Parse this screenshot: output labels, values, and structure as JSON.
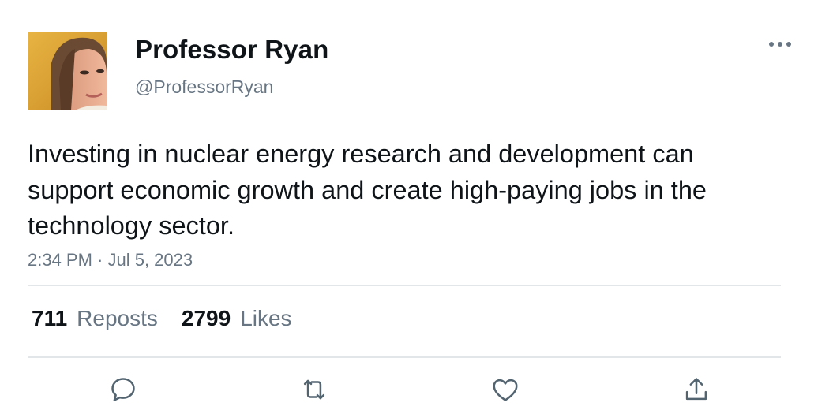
{
  "author": {
    "display_name": "Professor Ryan",
    "handle": "@ProfessorRyan",
    "avatar_icon": "profile-photo"
  },
  "tweet": {
    "text": "Investing in nuclear energy research and development can support economic growth and create high-paying jobs in the technology sector.",
    "timestamp": "2:34 PM · Jul 5, 2023"
  },
  "stats": {
    "reposts_count": "711",
    "reposts_label": "Reposts",
    "likes_count": "2799",
    "likes_label": "Likes"
  },
  "actions": {
    "reply_icon": "speech-bubble-icon",
    "repost_icon": "repost-arrows-icon",
    "like_icon": "heart-icon",
    "share_icon": "share-upload-icon"
  },
  "colors": {
    "primary_text": "#0f1419",
    "secondary_text": "#687684",
    "divider": "#e2e6e9",
    "icon": "#536471"
  }
}
